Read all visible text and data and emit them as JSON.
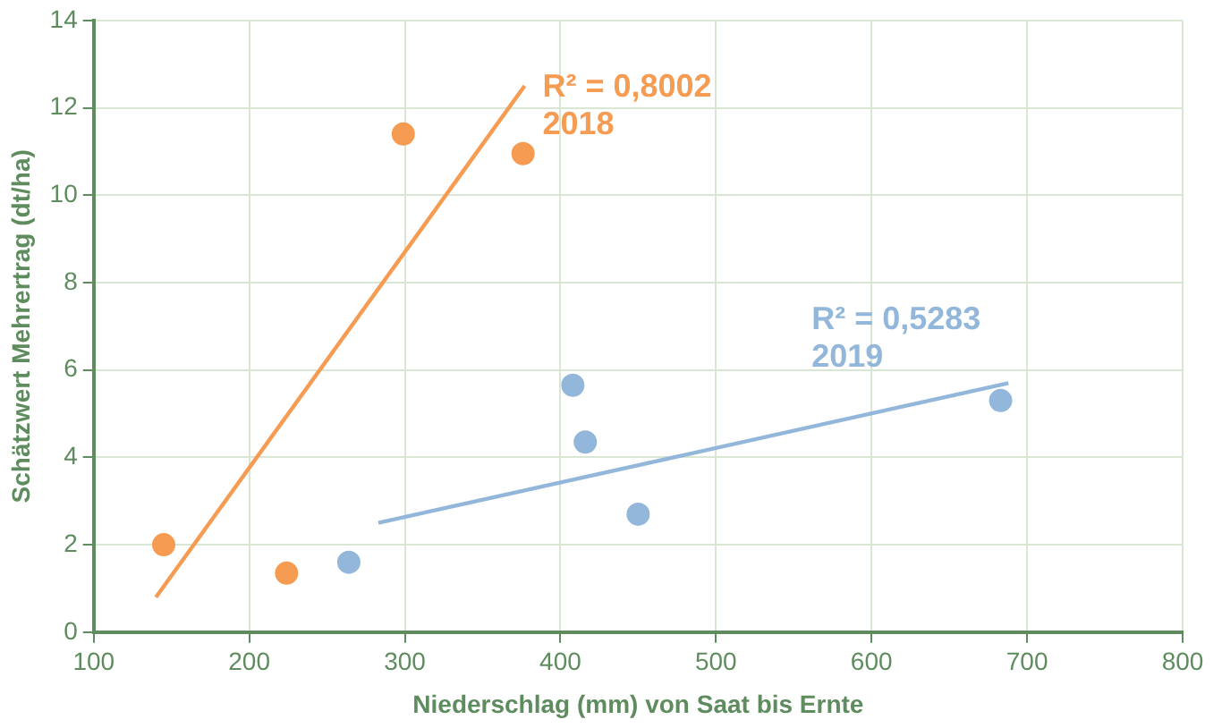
{
  "chart_data": {
    "type": "scatter",
    "xlabel": "Niederschlag (mm) von Saat bis Ernte",
    "ylabel": "Schätzwert Mehrertrag (dt/ha)",
    "xlim": [
      100,
      800
    ],
    "xticks": [
      100,
      200,
      300,
      400,
      500,
      600,
      700,
      800
    ],
    "ylim": [
      0,
      14
    ],
    "yticks": [
      0,
      2,
      4,
      6,
      8,
      10,
      12,
      14
    ],
    "grid": true,
    "legend": false,
    "marker": "circle",
    "series": [
      {
        "color": "#f59b52",
        "x": [
          145,
          224,
          299,
          376
        ],
        "values": [
          2.0,
          1.35,
          11.4,
          10.95
        ]
      },
      {
        "color": "#93b7da",
        "x": [
          264,
          408,
          416,
          450,
          683
        ],
        "values": [
          1.6,
          5.65,
          4.35,
          2.7,
          5.3
        ]
      },
      {
        "name": "2018",
        "type": "line",
        "marker": "none",
        "color": "#f59b52",
        "x": [
          140,
          377
        ],
        "values": [
          0.8,
          12.5
        ]
      },
      {
        "name": "2019",
        "type": "line",
        "marker": "none",
        "color": "#93b7da",
        "x": [
          283,
          688
        ],
        "values": [
          2.5,
          5.7
        ]
      }
    ],
    "annotations": [
      "R² = 0,8002",
      "R² = 0,5283"
    ]
  }
}
